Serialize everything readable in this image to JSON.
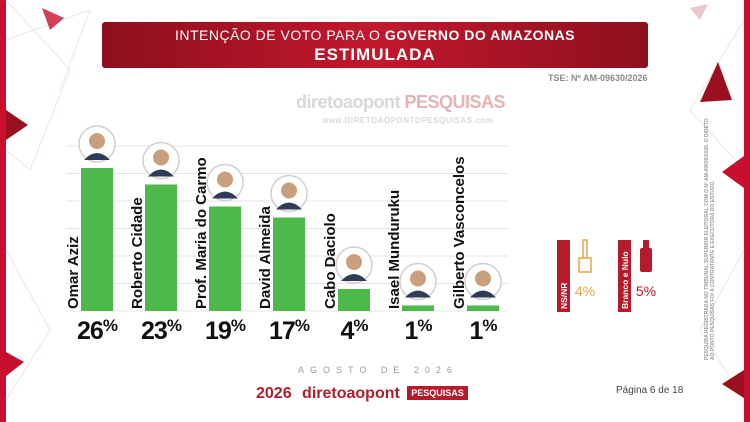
{
  "header": {
    "title_prefix": "INTENÇÃO DE VOTO PARA O",
    "title_bold": "GOVERNO DO AMAZONAS",
    "subtitle": "ESTIMULADA"
  },
  "registration": "TSE: Nº AM-09630/2026",
  "watermark": {
    "brand_a": "diretoaopont",
    "brand_b": "PESQUISAS",
    "url": "www.DIRETOAOPONTOPESQUISAS.com"
  },
  "chart_data": {
    "type": "bar",
    "title": "INTENÇÃO DE VOTO PARA O GOVERNO DO AMAZONAS - ESTIMULADA",
    "categories": [
      "Omar Aziz",
      "Roberto Cidade",
      "Prof. Maria do Carmo",
      "David Almeida",
      "Cabo Daciolo",
      "Isael Munduruku",
      "Gilberto Vasconcelos",
      "NS/NR",
      "Branco e Nulo"
    ],
    "values": [
      26,
      23,
      19,
      17,
      4,
      1,
      1,
      4,
      5
    ],
    "value_labels": [
      "26%",
      "23%",
      "19%",
      "17%",
      "4%",
      "1%",
      "1%",
      "4%",
      "5%"
    ],
    "unit": "%",
    "ylim": [
      0,
      30
    ],
    "grid": true,
    "legend": "none",
    "colors": {
      "candidate_bar": "#4cb94a",
      "ns_nr": "#e8a64a",
      "branco_nulo": "#b51b2a",
      "header": "#b51b2a"
    }
  },
  "month_label": "AGOSTO DE 2026",
  "footer": {
    "logo_year": "2026",
    "logo_brand": "diretoaopont",
    "logo_tag": "PESQUISAS",
    "page": "Página 6 de 18"
  },
  "side_note": "PESQUISA REGISTRADA NO TRIBUNAL SUPERIOR ELEITORAL COM O Nº AM-09630/2026. O DIRETO AO PONTO PESQUISAS FOI A CONTRATANTE E EXECUTORA DO ESTUDO."
}
